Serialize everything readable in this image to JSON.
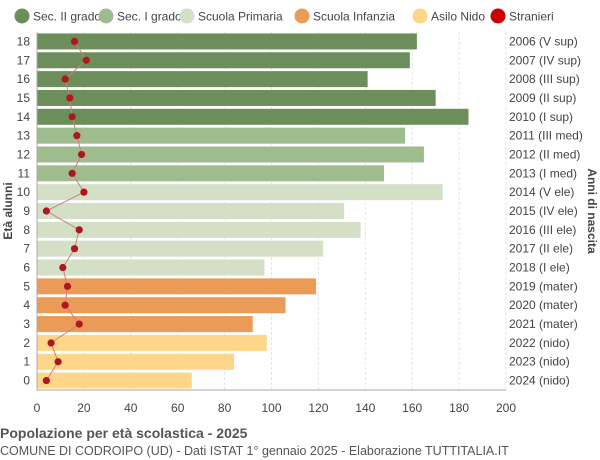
{
  "chart_data": {
    "type": "bar",
    "orientation": "horizontal",
    "title": "Popolazione per età scolastica - 2025",
    "subtitle": "COMUNE DI CODROIPO (UD) - Dati ISTAT 1° gennaio 2025 - Elaborazione TUTTITALIA.IT",
    "ylabel": "Età alunni",
    "ylabel_right": "Anni di nascita",
    "xlim": [
      0,
      200
    ],
    "xticks": [
      0,
      20,
      40,
      60,
      80,
      100,
      120,
      140,
      160,
      180,
      200
    ],
    "grid": true,
    "legend_position": "top",
    "legend": [
      {
        "name": "Sec. II grado",
        "color": "#6b8e5a"
      },
      {
        "name": "Sec. I grado",
        "color": "#9fbc8f"
      },
      {
        "name": "Scuola Primaria",
        "color": "#d3e0c6"
      },
      {
        "name": "Scuola Infanzia",
        "color": "#eb9b58"
      },
      {
        "name": "Asilo Nido",
        "color": "#fdd68a"
      },
      {
        "name": "Stranieri",
        "color": "#cc0000"
      }
    ],
    "ages": [
      0,
      1,
      2,
      3,
      4,
      5,
      6,
      7,
      8,
      9,
      10,
      11,
      12,
      13,
      14,
      15,
      16,
      17,
      18
    ],
    "birth_labels": [
      "2024 (nido)",
      "2023 (nido)",
      "2022 (nido)",
      "2021 (mater)",
      "2020 (mater)",
      "2019 (mater)",
      "2018 (I ele)",
      "2017 (II ele)",
      "2016 (III ele)",
      "2015 (IV ele)",
      "2014 (V ele)",
      "2013 (I med)",
      "2012 (II med)",
      "2011 (III med)",
      "2010 (I sup)",
      "2009 (II sup)",
      "2008 (III sup)",
      "2007 (IV sup)",
      "2006 (V sup)"
    ],
    "categories_group": [
      4,
      4,
      4,
      3,
      3,
      3,
      2,
      2,
      2,
      2,
      2,
      1,
      1,
      1,
      0,
      0,
      0,
      0,
      0
    ],
    "values": [
      66,
      84,
      98,
      92,
      106,
      119,
      97,
      122,
      138,
      131,
      173,
      148,
      165,
      157,
      184,
      170,
      141,
      159,
      162
    ],
    "stranieri": [
      4,
      9,
      6,
      18,
      12,
      13,
      11,
      16,
      18,
      4,
      20,
      15,
      19,
      17,
      15,
      14,
      12,
      21,
      16
    ]
  }
}
